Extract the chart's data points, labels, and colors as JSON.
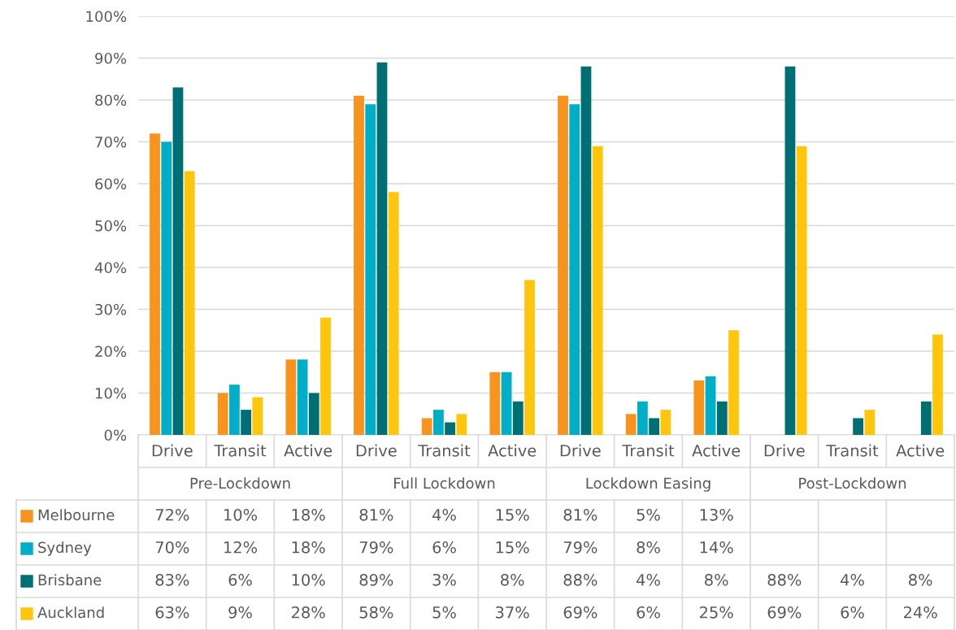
{
  "chart_data": {
    "type": "bar",
    "categories": [
      "Drive",
      "Transit",
      "Active",
      "Drive",
      "Transit",
      "Active",
      "Drive",
      "Transit",
      "Active",
      "Drive",
      "Transit",
      "Active"
    ],
    "annotations": [
      "Pre-Lockdown",
      "Full Lockdown",
      "Lockdown Easing",
      "Post-Lockdown"
    ],
    "series": [
      {
        "name": "Melbourne",
        "color": "#f7941d",
        "values": [
          72,
          10,
          18,
          81,
          4,
          15,
          81,
          5,
          13,
          null,
          null,
          null
        ],
        "value_labels": [
          "72%",
          "10%",
          "18%",
          "81%",
          "4%",
          "15%",
          "81%",
          "5%",
          "13%",
          null,
          null,
          null
        ]
      },
      {
        "name": "Sydney",
        "color": "#00aec7",
        "values": [
          70,
          12,
          18,
          79,
          6,
          15,
          79,
          8,
          14,
          null,
          null,
          null
        ],
        "value_labels": [
          "70%",
          "12%",
          "18%",
          "79%",
          "6%",
          "15%",
          "79%",
          "8%",
          "14%",
          null,
          null,
          null
        ]
      },
      {
        "name": "Brisbane",
        "color": "#006f74",
        "values": [
          83,
          6,
          10,
          89,
          3,
          8,
          88,
          4,
          8,
          88,
          4,
          8
        ],
        "value_labels": [
          "83%",
          "6%",
          "10%",
          "89%",
          "3%",
          "8%",
          "88%",
          "4%",
          "8%",
          "88%",
          "4%",
          "8%"
        ]
      },
      {
        "name": "Auckland",
        "color": "#ffc60b",
        "values": [
          63,
          9,
          28,
          58,
          5,
          37,
          69,
          6,
          25,
          69,
          6,
          24
        ],
        "value_labels": [
          "63%",
          "9%",
          "28%",
          "58%",
          "5%",
          "37%",
          "69%",
          "6%",
          "25%",
          "69%",
          "6%",
          "24%"
        ]
      }
    ],
    "ylim": [
      0,
      100
    ],
    "yticks": [
      {
        "value": 0,
        "label": "0%"
      },
      {
        "value": 10,
        "label": "10%"
      },
      {
        "value": 20,
        "label": "20%"
      },
      {
        "value": 30,
        "label": "30%"
      },
      {
        "value": 40,
        "label": "40%"
      },
      {
        "value": 50,
        "label": "50%"
      },
      {
        "value": 60,
        "label": "60%"
      },
      {
        "value": 70,
        "label": "70%"
      },
      {
        "value": 80,
        "label": "80%"
      },
      {
        "value": 90,
        "label": "90%"
      },
      {
        "value": 100,
        "label": "100%"
      }
    ],
    "grid": "y",
    "legend": "bottom left"
  }
}
